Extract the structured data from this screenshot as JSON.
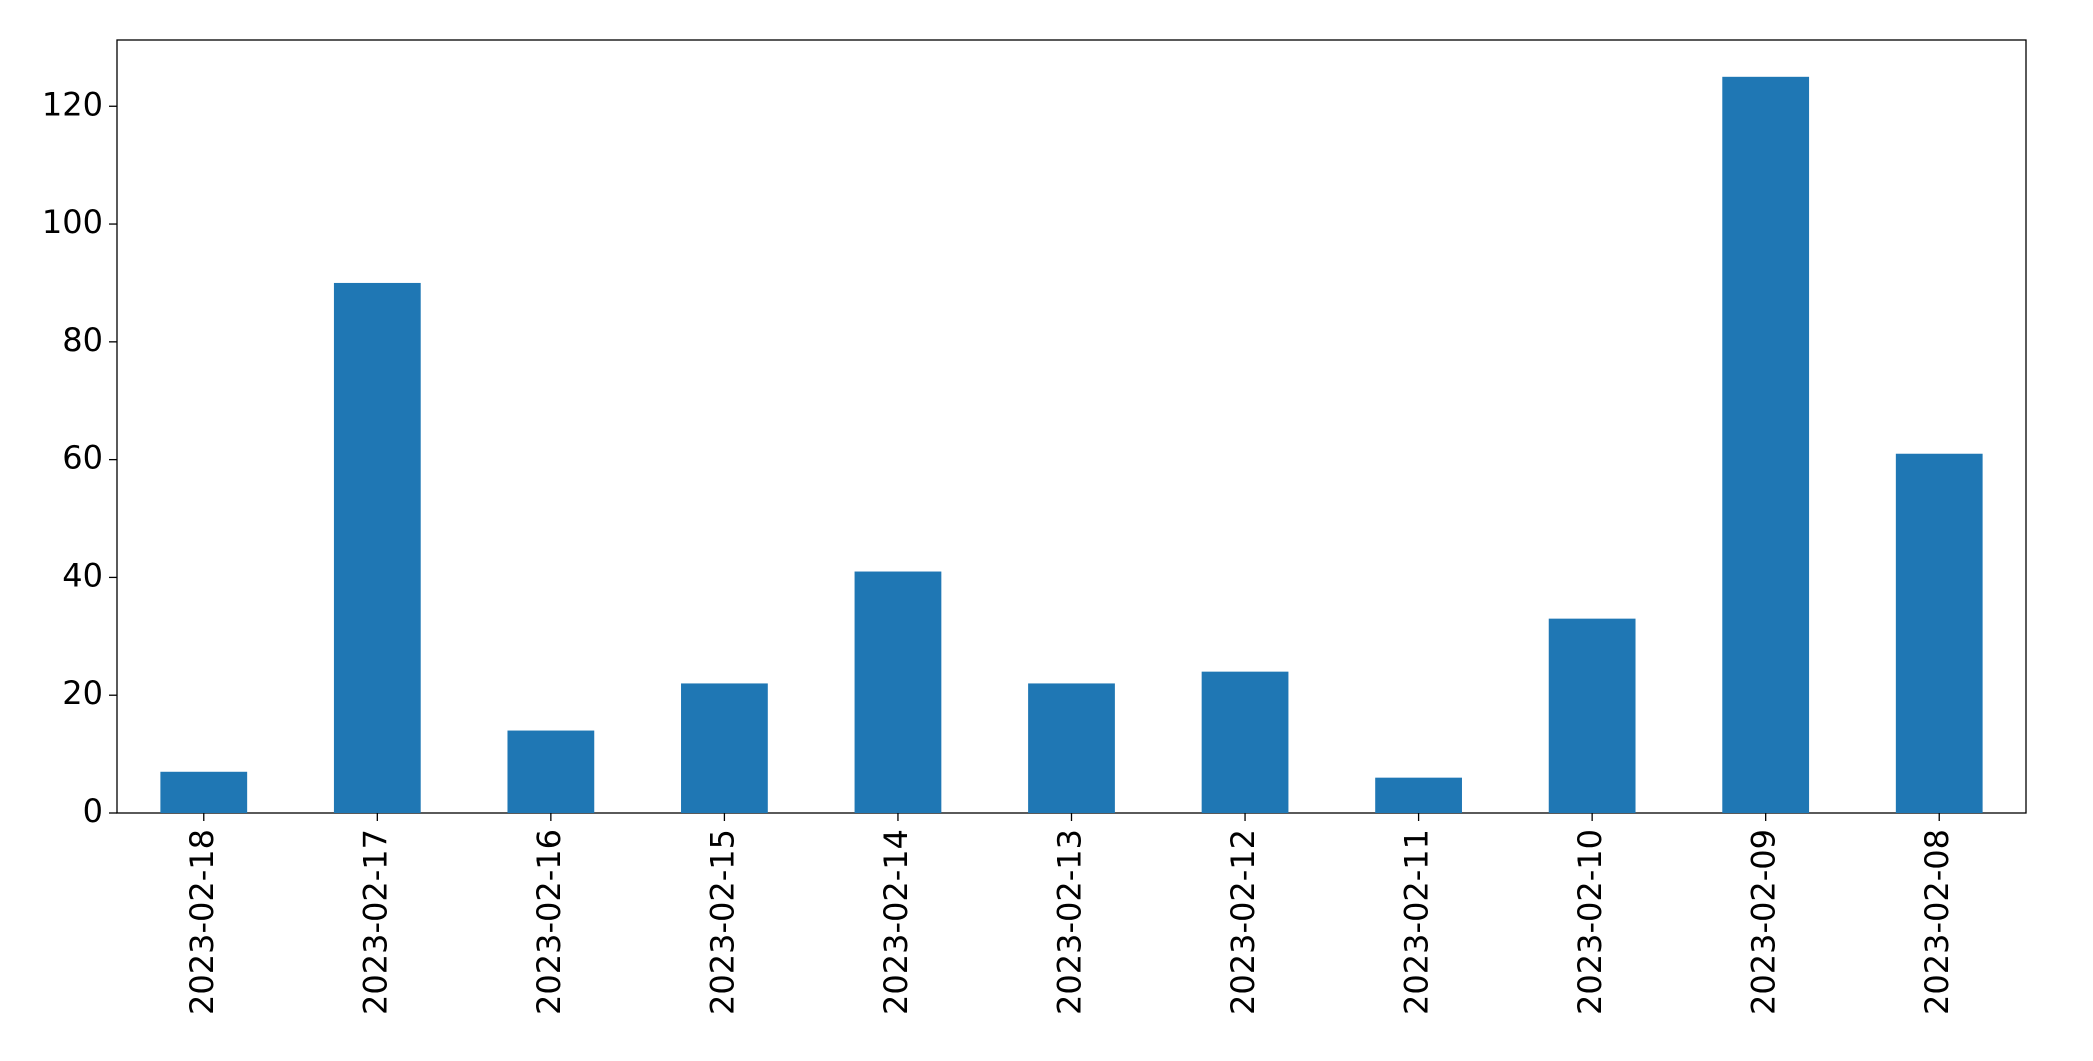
{
  "chart_data": {
    "type": "bar",
    "categories": [
      "2023-02-18",
      "2023-02-17",
      "2023-02-16",
      "2023-02-15",
      "2023-02-14",
      "2023-02-13",
      "2023-02-12",
      "2023-02-11",
      "2023-02-10",
      "2023-02-09",
      "2023-02-08"
    ],
    "values": [
      7,
      90,
      14,
      22,
      41,
      22,
      24,
      6,
      33,
      125,
      61
    ],
    "color": "#1f77b4",
    "ylim": [
      0,
      131.25
    ],
    "yticks": [
      0,
      20,
      40,
      60,
      80,
      100,
      120
    ],
    "grid": false
  }
}
